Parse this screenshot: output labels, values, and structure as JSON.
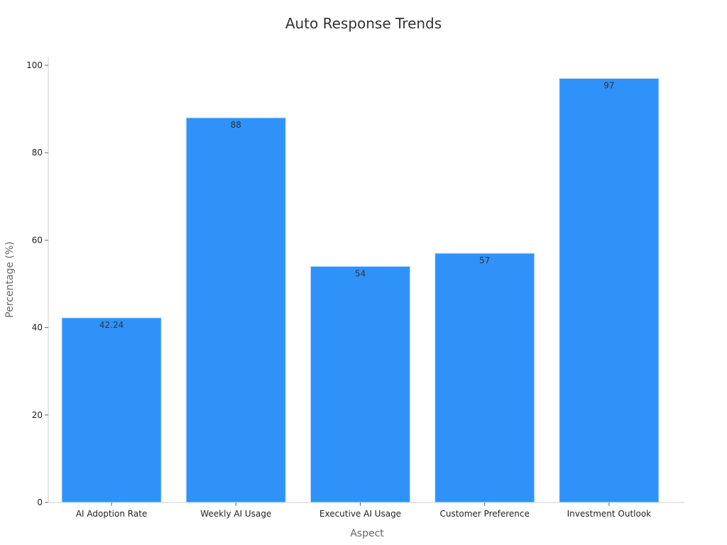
{
  "chart_data": {
    "type": "bar",
    "title": "Auto Response Trends",
    "xlabel": "Aspect",
    "ylabel": "Percentage (%)",
    "categories": [
      "AI Adoption Rate",
      "Weekly AI Usage",
      "Executive AI Usage",
      "Customer Preference",
      "Investment Outlook"
    ],
    "values": [
      42.24,
      88,
      54,
      57,
      97
    ],
    "data_labels": [
      "42.24",
      "88",
      "54",
      "57",
      "97"
    ],
    "ylim": [
      0,
      102
    ],
    "yticks": [
      0,
      20,
      40,
      60,
      80,
      100
    ],
    "grid": false,
    "legend": "none",
    "bar_color": "#2f92f8"
  }
}
